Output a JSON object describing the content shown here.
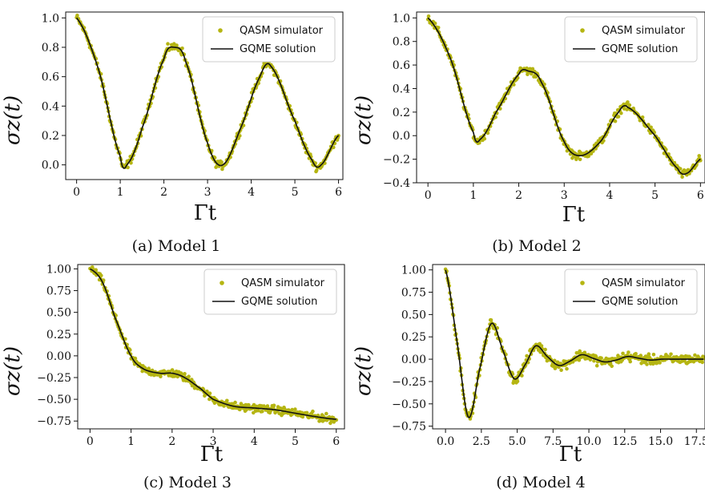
{
  "colors": {
    "simulator": "#b5b512",
    "gqme": "#111111"
  },
  "chart_data": [
    {
      "type": "line",
      "caption": "(a) Model 1",
      "xlabel": "Γt",
      "ylabel": "σz(t)",
      "xlim": [
        -0.25,
        6.1
      ],
      "ylim": [
        -0.1,
        1.04
      ],
      "xticks": [
        0,
        1,
        2,
        3,
        4,
        5,
        6
      ],
      "xtick_labels": [
        "0",
        "1",
        "2",
        "3",
        "4",
        "5",
        "6"
      ],
      "yticks": [
        0.0,
        0.2,
        0.4,
        0.6,
        0.8,
        1.0
      ],
      "ytick_labels": [
        "0.0",
        "0.2",
        "0.4",
        "0.6",
        "0.8",
        "1.0"
      ],
      "legend": {
        "position": "top-right",
        "entries": [
          "QASM simulator",
          "GQME solution"
        ]
      },
      "series": [
        {
          "name": "QASM simulator",
          "style": "scatter",
          "x_range": [
            0,
            6
          ],
          "noise": 0.02,
          "x": [
            0,
            0.5,
            1.0,
            1.15,
            1.5,
            2.0,
            2.23,
            2.5,
            3.0,
            3.35,
            3.8,
            4.2,
            4.45,
            5.0,
            5.4,
            5.6,
            6.0
          ],
          "y": [
            1.0,
            0.65,
            0.06,
            0.0,
            0.25,
            0.72,
            0.8,
            0.7,
            0.15,
            0.0,
            0.28,
            0.6,
            0.67,
            0.3,
            0.03,
            0.0,
            0.2
          ]
        },
        {
          "name": "GQME solution",
          "style": "line",
          "x": [
            0,
            0.5,
            1.0,
            1.15,
            1.5,
            2.0,
            2.23,
            2.5,
            3.0,
            3.35,
            3.8,
            4.2,
            4.45,
            5.0,
            5.4,
            5.6,
            6.0
          ],
          "y": [
            1.0,
            0.65,
            0.06,
            0.0,
            0.25,
            0.72,
            0.8,
            0.7,
            0.15,
            0.0,
            0.28,
            0.6,
            0.67,
            0.3,
            0.03,
            0.0,
            0.2
          ]
        }
      ]
    },
    {
      "type": "line",
      "caption": "(b) Model 2",
      "xlabel": "Γt",
      "ylabel": "σz(t)",
      "xlim": [
        -0.25,
        6.1
      ],
      "ylim": [
        -0.4,
        1.05
      ],
      "xticks": [
        0,
        1,
        2,
        3,
        4,
        5,
        6
      ],
      "xtick_labels": [
        "0",
        "1",
        "2",
        "3",
        "4",
        "5",
        "6"
      ],
      "yticks": [
        -0.4,
        -0.2,
        0.0,
        0.2,
        0.4,
        0.6,
        0.8,
        1.0
      ],
      "ytick_labels": [
        "−0.4",
        "−0.2",
        "0.0",
        "0.2",
        "0.4",
        "0.6",
        "0.8",
        "1.0"
      ],
      "legend": {
        "position": "top-right",
        "entries": [
          "QASM simulator",
          "GQME solution"
        ]
      },
      "series": [
        {
          "name": "QASM simulator",
          "style": "scatter",
          "x_range": [
            0,
            6
          ],
          "noise": 0.02,
          "x": [
            0,
            0.5,
            1.0,
            1.15,
            1.5,
            2.0,
            2.2,
            2.5,
            3.0,
            3.35,
            3.8,
            4.2,
            4.4,
            5.0,
            5.5,
            5.7,
            6.0
          ],
          "y": [
            1.0,
            0.65,
            0.03,
            -0.03,
            0.2,
            0.52,
            0.55,
            0.45,
            -0.05,
            -0.17,
            -0.05,
            0.2,
            0.24,
            0.0,
            -0.28,
            -0.32,
            -0.2
          ]
        },
        {
          "name": "GQME solution",
          "style": "line",
          "x": [
            0,
            0.5,
            1.0,
            1.15,
            1.5,
            2.0,
            2.2,
            2.5,
            3.0,
            3.35,
            3.8,
            4.2,
            4.4,
            5.0,
            5.5,
            5.7,
            6.0
          ],
          "y": [
            1.0,
            0.65,
            0.03,
            -0.03,
            0.2,
            0.52,
            0.55,
            0.45,
            -0.05,
            -0.17,
            -0.05,
            0.2,
            0.24,
            0.0,
            -0.28,
            -0.32,
            -0.2
          ]
        }
      ]
    },
    {
      "type": "line",
      "caption": "(c) Model 3",
      "xlabel": "Γt",
      "ylabel": "σz(t)",
      "xlim": [
        -0.3,
        6.2
      ],
      "ylim": [
        -0.84,
        1.05
      ],
      "xticks": [
        0,
        1,
        2,
        3,
        4,
        5,
        6
      ],
      "xtick_labels": [
        "0",
        "1",
        "2",
        "3",
        "4",
        "5",
        "6"
      ],
      "yticks": [
        -0.75,
        -0.5,
        -0.25,
        0.0,
        0.25,
        0.5,
        0.75,
        1.0
      ],
      "ytick_labels": [
        "−0.75",
        "−0.50",
        "−0.25",
        "0.00",
        "0.25",
        "0.50",
        "0.75",
        "1.00"
      ],
      "legend": {
        "position": "top-right",
        "entries": [
          "QASM simulator",
          "GQME solution"
        ]
      },
      "series": [
        {
          "name": "QASM simulator",
          "style": "scatter",
          "x_range": [
            0,
            6
          ],
          "noise": 0.02,
          "x": [
            0,
            0.3,
            0.6,
            1.0,
            1.3,
            1.7,
            2.0,
            2.3,
            2.7,
            3.0,
            3.5,
            4.0,
            4.5,
            5.0,
            5.5,
            6.0
          ],
          "y": [
            1.0,
            0.85,
            0.45,
            0.0,
            -0.15,
            -0.2,
            -0.2,
            -0.25,
            -0.38,
            -0.5,
            -0.58,
            -0.6,
            -0.62,
            -0.66,
            -0.7,
            -0.73
          ]
        },
        {
          "name": "GQME solution",
          "style": "line",
          "x": [
            0,
            0.3,
            0.6,
            1.0,
            1.3,
            1.7,
            2.0,
            2.3,
            2.7,
            3.0,
            3.5,
            4.0,
            4.5,
            5.0,
            5.5,
            6.0
          ],
          "y": [
            1.0,
            0.85,
            0.45,
            0.0,
            -0.15,
            -0.2,
            -0.2,
            -0.25,
            -0.38,
            -0.5,
            -0.58,
            -0.6,
            -0.62,
            -0.66,
            -0.7,
            -0.73
          ]
        }
      ]
    },
    {
      "type": "line",
      "caption": "(d) Model 4",
      "xlabel": "Γt",
      "ylabel": "σz(t)",
      "xlim": [
        -0.9,
        18.1
      ],
      "ylim": [
        -0.78,
        1.06
      ],
      "xticks": [
        0,
        2.5,
        5,
        7.5,
        10,
        12.5,
        15,
        17.5
      ],
      "xtick_labels": [
        "0.0",
        "2.5",
        "5.0",
        "7.5",
        "10.0",
        "12.5",
        "15.0",
        "17.5"
      ],
      "yticks": [
        -0.75,
        -0.5,
        -0.25,
        0.0,
        0.25,
        0.5,
        0.75,
        1.0
      ],
      "ytick_labels": [
        "−0.75",
        "−0.50",
        "−0.25",
        "0.00",
        "0.25",
        "0.50",
        "0.75",
        "1.00"
      ],
      "legend": {
        "position": "top-right",
        "entries": [
          "QASM simulator",
          "GQME solution"
        ]
      },
      "series": [
        {
          "name": "QASM simulator",
          "style": "scatter",
          "x_range": [
            0,
            18
          ],
          "noise": 0.025,
          "x": [
            0,
            0.8,
            1.6,
            2.4,
            3.2,
            4.0,
            4.8,
            5.6,
            6.3,
            7.1,
            7.9,
            8.7,
            9.5,
            10.3,
            11.1,
            11.9,
            12.7,
            13.5,
            14.3,
            15.1,
            15.9,
            16.7,
            17.5,
            18.0
          ],
          "y": [
            1.0,
            0.2,
            -0.65,
            -0.1,
            0.4,
            0.1,
            -0.22,
            -0.05,
            0.15,
            0.03,
            -0.07,
            -0.02,
            0.05,
            0.01,
            -0.03,
            -0.01,
            0.03,
            0.01,
            -0.01,
            0.0,
            0.0,
            0.0,
            0.0,
            0.0
          ]
        },
        {
          "name": "GQME solution",
          "style": "line",
          "x": [
            0,
            0.8,
            1.6,
            2.4,
            3.2,
            4.0,
            4.8,
            5.6,
            6.3,
            7.1,
            7.9,
            8.7,
            9.5,
            10.3,
            11.1,
            11.9,
            12.7,
            13.5,
            14.3,
            15.1,
            15.9,
            16.7,
            17.5,
            18.0
          ],
          "y": [
            1.0,
            0.2,
            -0.65,
            -0.1,
            0.4,
            0.1,
            -0.22,
            -0.05,
            0.15,
            0.03,
            -0.07,
            -0.02,
            0.05,
            0.01,
            -0.03,
            -0.01,
            0.03,
            0.01,
            -0.01,
            0.0,
            0.0,
            0.0,
            0.0,
            0.0
          ]
        }
      ]
    }
  ]
}
